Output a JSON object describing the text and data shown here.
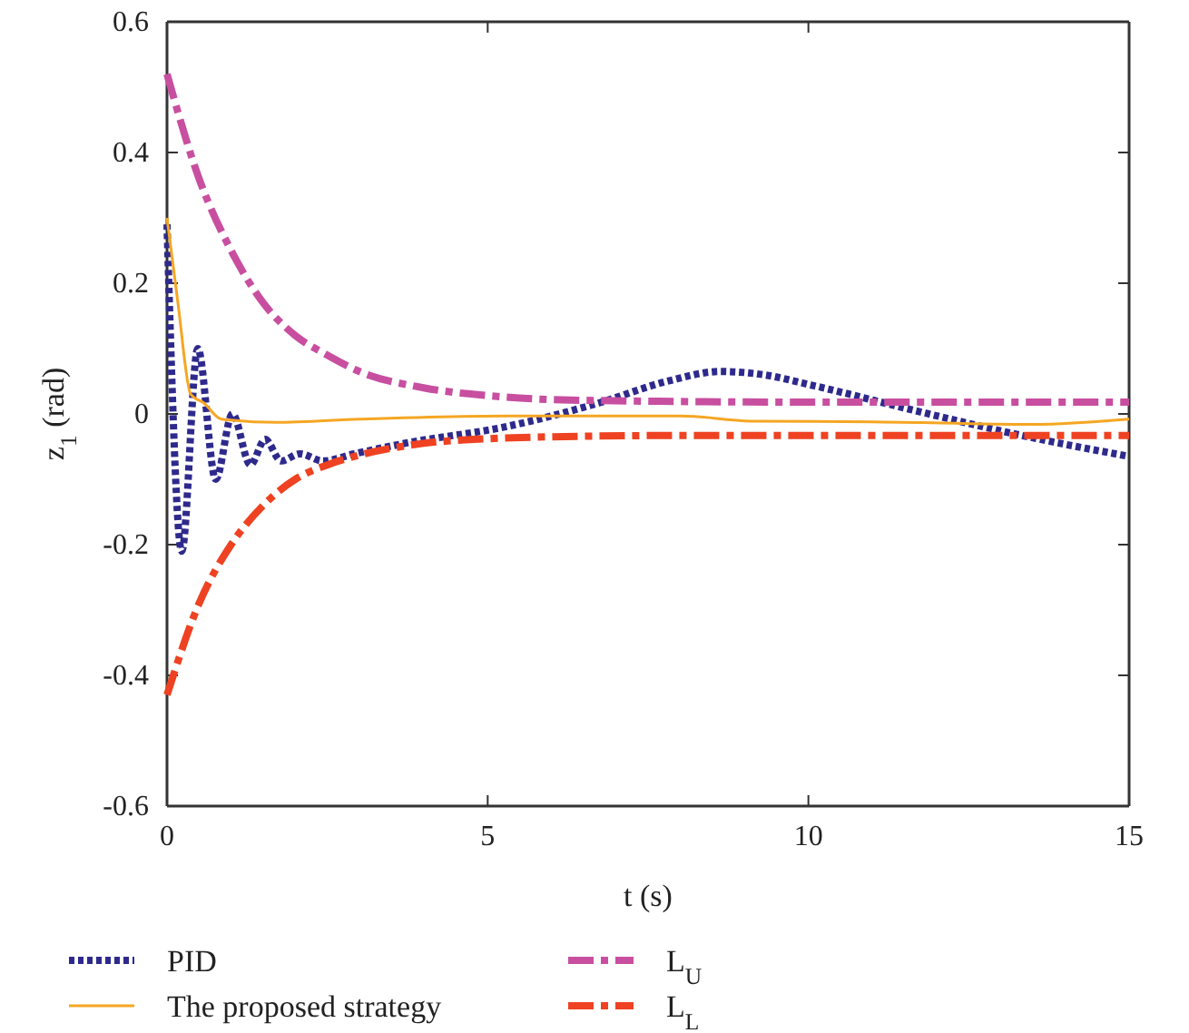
{
  "chart_data": {
    "type": "line",
    "xlabel": "t (s)",
    "ylabel": "z$_{1}$ (rad)",
    "xlim": [
      0,
      15
    ],
    "ylim": [
      -0.6,
      0.6
    ],
    "xticks": [
      0,
      5,
      10,
      15
    ],
    "yticks": [
      -0.6,
      -0.4,
      -0.2,
      0,
      0.2,
      0.4,
      0.6
    ],
    "grid": false,
    "legend": "bottom",
    "marker": "none",
    "series": [
      {
        "name": "PID",
        "color": "#2e2a8c",
        "line_style": "dotted",
        "x": [
          0,
          0.23,
          0.48,
          0.76,
          1.02,
          1.3,
          1.53,
          1.78,
          2.07,
          2.43,
          2.92,
          3.76,
          5.26,
          6.74,
          7.8,
          8.63,
          9.3,
          10.05,
          11.75,
          13.33,
          15
        ],
        "values": [
          0.29,
          -0.21,
          0.1,
          -0.1,
          0,
          -0.078,
          -0.039,
          -0.072,
          -0.061,
          -0.072,
          -0.061,
          -0.044,
          -0.02,
          0.017,
          0.05,
          0.065,
          0.06,
          0.044,
          0.003,
          -0.033,
          -0.065
        ]
      },
      {
        "name": "The proposed strategy",
        "color": "#f5a623",
        "line_style": "solid",
        "x": [
          0,
          0.17,
          0.37,
          0.57,
          0.85,
          1.7,
          3,
          5.3,
          8,
          9.1,
          11,
          13.5,
          15
        ],
        "values": [
          0.3,
          0.17,
          0.03,
          0.017,
          -0.008,
          -0.013,
          -0.008,
          -0.003,
          -0.003,
          -0.011,
          -0.012,
          -0.016,
          -0.008
        ]
      },
      {
        "name": "L$_{U}$",
        "color": "#c84fa0",
        "line_style": "dashed",
        "x": [
          0,
          0.5,
          1,
          1.5,
          2,
          2.5,
          3,
          4,
          5,
          6,
          8,
          10,
          15
        ],
        "values": [
          0.52,
          0.36,
          0.25,
          0.17,
          0.12,
          0.09,
          0.065,
          0.04,
          0.028,
          0.022,
          0.019,
          0.018,
          0.018
        ]
      },
      {
        "name": "L$_{L}$",
        "color": "#ee4222",
        "line_style": "dashed",
        "x": [
          0,
          0.5,
          1,
          1.5,
          2,
          2.5,
          3,
          4,
          5,
          6,
          8,
          15
        ],
        "values": [
          -0.43,
          -0.29,
          -0.2,
          -0.14,
          -0.1,
          -0.078,
          -0.063,
          -0.045,
          -0.038,
          -0.035,
          -0.033,
          -0.033
        ]
      }
    ]
  }
}
